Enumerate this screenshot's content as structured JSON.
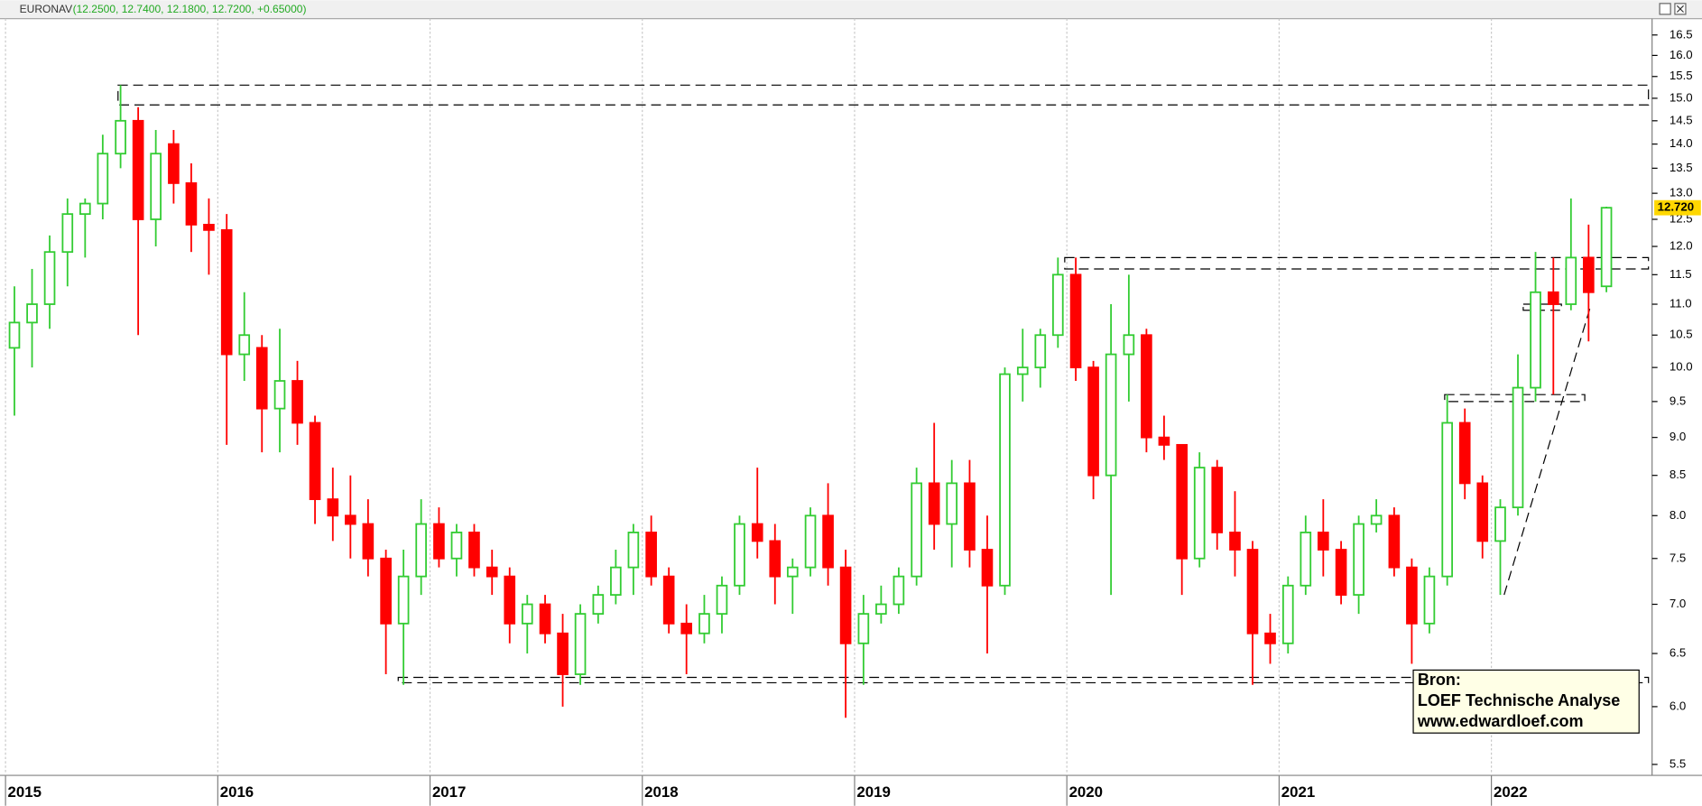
{
  "chart_data": {
    "type": "candlestick",
    "header_name": "EURONAV",
    "header_values": "(12.2500, 12.7400, 12.1800, 12.7200, +0.65000)",
    "log_scale": true,
    "grid": true,
    "up_color": "#33cc33",
    "down_color": "#ff0000",
    "xlim": [
      2014.974,
      2022.757
    ],
    "xticks": [
      2015,
      2016,
      2017,
      2018,
      2019,
      2020,
      2021,
      2022
    ],
    "ylim": [
      5.41,
      16.91
    ],
    "yticks": [
      5.5,
      {
        "value": 6,
        "label": "6.0"
      },
      6.5,
      {
        "value": 7,
        "label": "7.0"
      },
      7.5,
      {
        "value": 8,
        "label": "8.0"
      },
      8.5,
      {
        "value": 9,
        "label": "9.0"
      },
      9.5,
      {
        "value": 10,
        "label": "10.0"
      },
      10.5,
      {
        "value": 11,
        "label": "11.0"
      },
      11.5,
      {
        "value": 12,
        "label": "12.0"
      },
      12.5,
      {
        "value": 13,
        "label": "13.0"
      },
      13.5,
      {
        "value": 14,
        "label": "14.0"
      },
      14.5,
      {
        "value": 15,
        "label": "15.0"
      },
      15.5,
      {
        "value": 16,
        "label": "16.0"
      },
      16.5
    ],
    "last_price": {
      "value": 12.72,
      "label": "12.720"
    },
    "x": [
      2015.042,
      2015.125,
      2015.208,
      2015.292,
      2015.375,
      2015.458,
      2015.542,
      2015.625,
      2015.708,
      2015.792,
      2015.875,
      2015.958,
      2016.042,
      2016.125,
      2016.208,
      2016.292,
      2016.375,
      2016.458,
      2016.542,
      2016.625,
      2016.708,
      2016.792,
      2016.875,
      2016.958,
      2017.042,
      2017.125,
      2017.208,
      2017.292,
      2017.375,
      2017.458,
      2017.542,
      2017.625,
      2017.708,
      2017.792,
      2017.875,
      2017.958,
      2018.042,
      2018.125,
      2018.208,
      2018.292,
      2018.375,
      2018.458,
      2018.542,
      2018.625,
      2018.708,
      2018.792,
      2018.875,
      2018.958,
      2019.042,
      2019.125,
      2019.208,
      2019.292,
      2019.375,
      2019.458,
      2019.542,
      2019.625,
      2019.708,
      2019.792,
      2019.875,
      2019.958,
      2020.042,
      2020.125,
      2020.208,
      2020.292,
      2020.375,
      2020.458,
      2020.542,
      2020.625,
      2020.708,
      2020.792,
      2020.875,
      2020.958,
      2021.042,
      2021.125,
      2021.208,
      2021.292,
      2021.375,
      2021.458,
      2021.542,
      2021.625,
      2021.708,
      2021.792,
      2021.875,
      2021.958,
      2022.042,
      2022.125,
      2022.208,
      2022.292,
      2022.375,
      2022.458,
      2022.542
    ],
    "open": [
      10.3,
      10.7,
      11.0,
      11.9,
      12.6,
      12.8,
      13.8,
      14.5,
      12.5,
      14.0,
      13.2,
      12.4,
      12.3,
      10.2,
      10.3,
      9.4,
      9.8,
      9.2,
      8.2,
      8.0,
      7.9,
      7.5,
      6.8,
      7.3,
      7.9,
      7.5,
      7.8,
      7.4,
      7.3,
      6.8,
      7.0,
      6.7,
      6.3,
      6.9,
      7.1,
      7.4,
      7.8,
      7.3,
      6.8,
      6.7,
      6.9,
      7.2,
      7.9,
      7.7,
      7.3,
      7.4,
      8.0,
      7.4,
      6.6,
      6.9,
      7.0,
      7.3,
      8.4,
      7.9,
      8.4,
      7.6,
      7.2,
      9.9,
      10.0,
      10.5,
      11.5,
      10.0,
      8.5,
      10.2,
      10.5,
      9.0,
      8.9,
      7.5,
      8.6,
      7.8,
      7.6,
      6.7,
      6.6,
      7.2,
      7.8,
      7.6,
      7.1,
      7.9,
      8.0,
      7.4,
      6.8,
      7.3,
      9.2,
      8.4,
      7.7,
      8.1,
      9.7,
      11.2,
      11.0,
      11.8,
      11.3
    ],
    "high": [
      11.3,
      11.6,
      12.2,
      12.9,
      12.9,
      14.2,
      15.3,
      14.8,
      14.3,
      14.3,
      13.6,
      12.9,
      12.6,
      11.2,
      10.5,
      10.6,
      10.1,
      9.3,
      8.6,
      8.5,
      8.2,
      7.6,
      7.6,
      8.2,
      8.1,
      7.9,
      7.9,
      7.6,
      7.4,
      7.1,
      7.1,
      6.9,
      7.0,
      7.2,
      7.6,
      7.9,
      8.0,
      7.4,
      7.0,
      7.1,
      7.3,
      8.0,
      8.6,
      7.9,
      7.5,
      8.1,
      8.4,
      7.6,
      7.1,
      7.2,
      7.4,
      8.6,
      9.2,
      8.7,
      8.7,
      8.0,
      10.0,
      10.6,
      10.6,
      11.8,
      11.8,
      10.1,
      11.0,
      11.5,
      10.6,
      9.3,
      8.9,
      8.8,
      8.7,
      8.3,
      7.7,
      6.9,
      7.3,
      8.0,
      8.2,
      7.7,
      8.0,
      8.2,
      8.1,
      7.5,
      7.4,
      9.6,
      9.4,
      8.5,
      8.2,
      10.2,
      11.9,
      11.8,
      12.9,
      12.4,
      12.74
    ],
    "low": [
      9.3,
      10.0,
      10.6,
      11.3,
      11.8,
      12.5,
      13.5,
      10.5,
      12.0,
      12.8,
      11.9,
      11.5,
      8.9,
      9.8,
      8.8,
      8.8,
      8.9,
      7.9,
      7.7,
      7.5,
      7.3,
      6.3,
      6.2,
      7.1,
      7.4,
      7.3,
      7.3,
      7.1,
      6.6,
      6.5,
      6.6,
      6.0,
      6.2,
      6.8,
      7.0,
      7.1,
      7.2,
      6.7,
      6.3,
      6.6,
      6.7,
      7.1,
      7.5,
      7.0,
      6.9,
      7.3,
      7.2,
      5.9,
      6.2,
      6.8,
      6.9,
      7.2,
      7.6,
      7.4,
      7.4,
      6.5,
      7.1,
      9.5,
      9.7,
      10.3,
      9.8,
      8.2,
      7.1,
      9.5,
      8.8,
      8.7,
      7.1,
      7.4,
      7.6,
      7.3,
      6.2,
      6.4,
      6.5,
      7.1,
      7.3,
      7.0,
      6.9,
      7.8,
      7.3,
      6.4,
      6.7,
      7.2,
      8.2,
      7.5,
      7.1,
      8.0,
      9.5,
      9.6,
      10.9,
      10.4,
      11.2
    ],
    "close": [
      10.7,
      11.0,
      11.9,
      12.6,
      12.8,
      13.8,
      14.5,
      12.5,
      13.8,
      13.2,
      12.4,
      12.3,
      10.2,
      10.5,
      9.4,
      9.8,
      9.2,
      8.2,
      8.0,
      7.9,
      7.5,
      6.8,
      7.3,
      7.9,
      7.5,
      7.8,
      7.4,
      7.3,
      6.8,
      7.0,
      6.7,
      6.3,
      6.9,
      7.1,
      7.4,
      7.8,
      7.3,
      6.8,
      6.7,
      6.9,
      7.2,
      7.9,
      7.7,
      7.3,
      7.4,
      8.0,
      7.4,
      6.6,
      6.9,
      7.0,
      7.3,
      8.4,
      7.9,
      8.4,
      7.6,
      7.2,
      9.9,
      10.0,
      10.5,
      11.5,
      10.0,
      8.5,
      10.2,
      10.5,
      9.0,
      8.9,
      7.5,
      8.6,
      7.8,
      7.6,
      6.7,
      6.6,
      7.2,
      7.8,
      7.6,
      7.1,
      7.9,
      8.0,
      7.4,
      6.8,
      7.3,
      9.2,
      8.4,
      7.7,
      8.1,
      9.7,
      11.2,
      11.0,
      11.8,
      11.2,
      12.72
    ],
    "boxes": [
      {
        "x": [
          2015.53,
          2022.74
        ],
        "y": [
          14.85,
          15.3
        ]
      },
      {
        "x": [
          2019.99,
          2022.74
        ],
        "y": [
          11.6,
          11.8
        ]
      },
      {
        "x": [
          2016.85,
          2022.74
        ],
        "y": [
          6.22,
          6.27
        ]
      },
      {
        "x": [
          2021.78,
          2022.44
        ],
        "y": [
          9.5,
          9.6
        ]
      },
      {
        "x": [
          2022.15,
          2022.33
        ],
        "y": [
          10.9,
          11.0
        ]
      }
    ],
    "trendline": {
      "x": [
        2022.06,
        2022.47
      ],
      "y": [
        7.1,
        11.0
      ]
    },
    "source_lines": [
      "Bron:",
      "LOEF Technische Analyse",
      "www.edwardloef.com"
    ]
  }
}
